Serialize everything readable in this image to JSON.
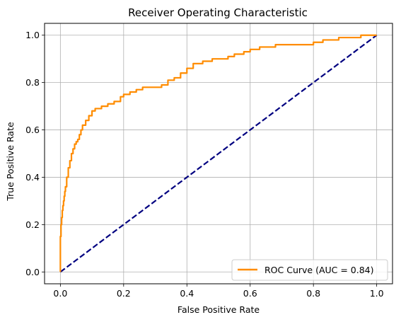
{
  "chart_data": {
    "type": "line",
    "title": "Receiver Operating Characteristic",
    "xlabel": "False Positive Rate",
    "ylabel": "True Positive Rate",
    "xlim": [
      -0.05,
      1.05
    ],
    "ylim": [
      -0.05,
      1.05
    ],
    "xticks": [
      "0.0",
      "0.2",
      "0.4",
      "0.6",
      "0.8",
      "1.0"
    ],
    "yticks": [
      "0.0",
      "0.2",
      "0.4",
      "0.6",
      "0.8",
      "1.0"
    ],
    "grid": true,
    "legend_position": "lower-right",
    "series": [
      {
        "name": "ROC Curve (AUC = 0.84)",
        "color": "#ff8c00",
        "style": "solid",
        "x": [
          0.0,
          0.0,
          0.002,
          0.004,
          0.006,
          0.008,
          0.01,
          0.012,
          0.014,
          0.016,
          0.02,
          0.025,
          0.03,
          0.035,
          0.04,
          0.045,
          0.05,
          0.055,
          0.06,
          0.065,
          0.07,
          0.08,
          0.09,
          0.1,
          0.11,
          0.12,
          0.13,
          0.15,
          0.17,
          0.19,
          0.2,
          0.22,
          0.24,
          0.26,
          0.28,
          0.3,
          0.32,
          0.34,
          0.36,
          0.38,
          0.4,
          0.42,
          0.45,
          0.48,
          0.5,
          0.53,
          0.55,
          0.58,
          0.6,
          0.63,
          0.65,
          0.68,
          0.7,
          0.73,
          0.75,
          0.78,
          0.8,
          0.83,
          0.85,
          0.88,
          0.9,
          0.93,
          0.95,
          0.98,
          1.0
        ],
        "y": [
          0.0,
          0.15,
          0.2,
          0.23,
          0.26,
          0.28,
          0.3,
          0.32,
          0.34,
          0.36,
          0.4,
          0.44,
          0.47,
          0.5,
          0.52,
          0.54,
          0.55,
          0.56,
          0.58,
          0.6,
          0.62,
          0.64,
          0.66,
          0.68,
          0.69,
          0.69,
          0.7,
          0.71,
          0.72,
          0.74,
          0.75,
          0.76,
          0.77,
          0.78,
          0.78,
          0.78,
          0.79,
          0.81,
          0.82,
          0.84,
          0.86,
          0.88,
          0.89,
          0.9,
          0.9,
          0.91,
          0.92,
          0.93,
          0.94,
          0.95,
          0.95,
          0.96,
          0.96,
          0.96,
          0.96,
          0.96,
          0.97,
          0.98,
          0.98,
          0.99,
          0.99,
          0.99,
          1.0,
          1.0,
          1.0
        ]
      },
      {
        "name": "",
        "color": "#000080",
        "style": "dashed",
        "x": [
          0.0,
          1.0
        ],
        "y": [
          0.0,
          1.0
        ]
      }
    ]
  }
}
